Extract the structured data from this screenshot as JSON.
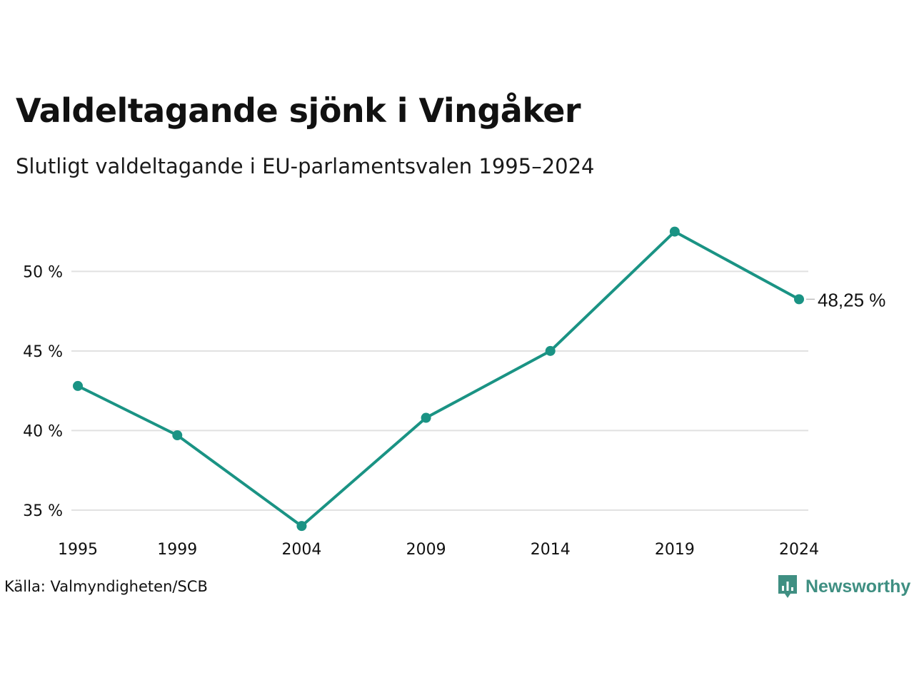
{
  "title": "Valdeltagande sjönk i Vingåker",
  "subtitle": "Slutligt valdeltagande i EU-parlamentsvalen 1995–2024",
  "source": "Källa: Valmyndigheten/SCB",
  "brand": "Newsworthy",
  "colors": {
    "line": "#1a9384",
    "grid": "#e1e1e1",
    "brand": "#3f8f82"
  },
  "chart_data": {
    "type": "line",
    "categories": [
      "1995",
      "1999",
      "2004",
      "2009",
      "2014",
      "2019",
      "2024"
    ],
    "x": [
      1995,
      1999,
      2004,
      2009,
      2014,
      2019,
      2024
    ],
    "values": [
      42.8,
      39.7,
      34.0,
      40.8,
      45.0,
      52.5,
      48.25
    ],
    "yticks": [
      35,
      40,
      45,
      50
    ],
    "ytick_labels": [
      "35 %",
      "40 %",
      "45 %",
      "50 %"
    ],
    "ylim": [
      33.2,
      54.5
    ],
    "end_label": "48,25 %",
    "grid": true,
    "legend": "none"
  }
}
